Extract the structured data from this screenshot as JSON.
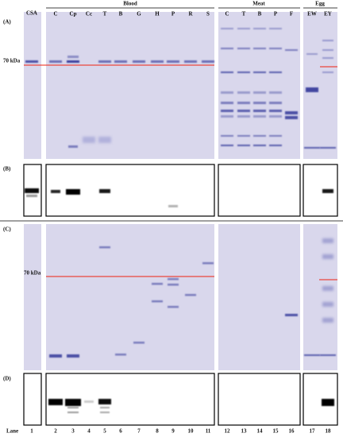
{
  "header": {
    "csa": "CSA",
    "groups": [
      "Blood",
      "Meat",
      "Egg"
    ],
    "lanes": [
      "C",
      "Cp",
      "Cc",
      "T",
      "B",
      "G",
      "H",
      "P",
      "R",
      "S",
      "C",
      "T",
      "B",
      "P",
      "F",
      "EW",
      "EY"
    ]
  },
  "panels": [
    "(A)",
    "(B)",
    "(C)",
    "(D)"
  ],
  "markers": [
    "70 kDa",
    "70 kDa"
  ],
  "lane_label": "Lane",
  "lane_numbers": [
    "1",
    "2",
    "3",
    "4",
    "5",
    "6",
    "7",
    "8",
    "9",
    "10",
    "11",
    "12",
    "13",
    "14",
    "15",
    "16",
    "17",
    "18"
  ]
}
